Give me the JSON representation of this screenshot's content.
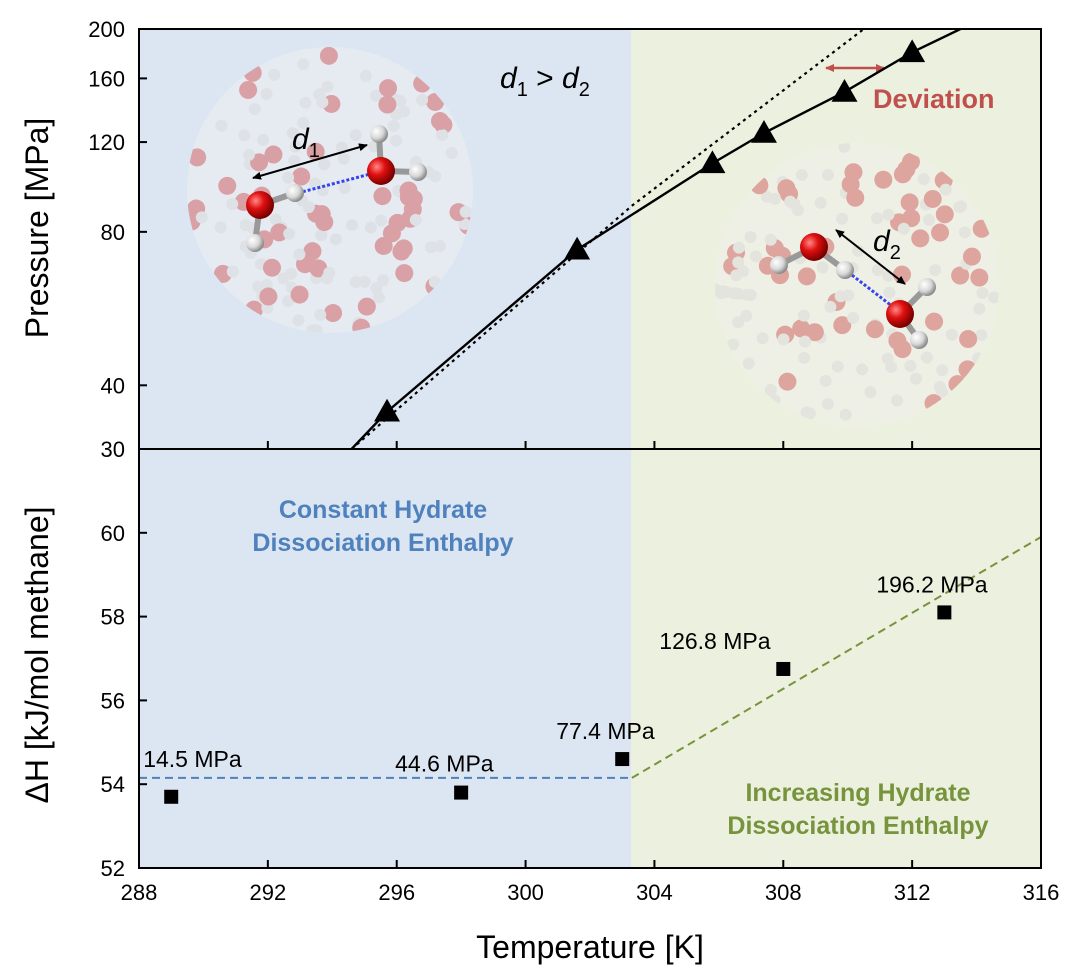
{
  "colors": {
    "left_region": "#dce6f2",
    "right_region": "#ebf1de",
    "constant_label": "#4f81bd",
    "increasing_label": "#77933c",
    "deviation": "#c0504d",
    "marker": "#000000"
  },
  "chart_data": [
    {
      "type": "line",
      "panel": "top",
      "ylabel": "Pressure [MPa]",
      "yscale": "log",
      "ylim": [
        30,
        200
      ],
      "yticks": [
        "30",
        "40",
        "80",
        "120",
        "160",
        "200"
      ],
      "xlim": [
        288,
        316
      ],
      "series": [
        {
          "style": "triangle markers, solid line",
          "x": [
            295.7,
            301.6,
            305.8,
            307.4,
            309.9,
            312.0
          ],
          "y": [
            35.5,
            73.8,
            109.0,
            125.0,
            150.5,
            180.0
          ]
        },
        {
          "style": "dotted line",
          "x": [
            294.6,
            303.3,
            310.5
          ],
          "y": [
            30,
            90,
            200
          ]
        }
      ],
      "annotations": {
        "inequality": "d1 > d2",
        "d1": "d1",
        "d2": "d2",
        "deviation": "Deviation"
      }
    },
    {
      "type": "scatter",
      "panel": "bottom",
      "xlabel": "Temperature [K]",
      "ylabel": "ΔH [kJ/mol methane]",
      "xlim": [
        288,
        316
      ],
      "ylim": [
        52,
        62
      ],
      "xticks": [
        "288",
        "292",
        "296",
        "300",
        "304",
        "308",
        "312",
        "316"
      ],
      "yticks": [
        "52",
        "54",
        "56",
        "58",
        "60"
      ],
      "series": [
        {
          "style": "square markers",
          "x": [
            289,
            298,
            303,
            308,
            313
          ],
          "y": [
            53.7,
            53.8,
            54.6,
            56.75,
            58.1
          ],
          "labels": [
            "14.5 MPa",
            "44.6 MPa",
            "77.4 MPa",
            "126.8 MPa",
            "196.2 MPa"
          ]
        }
      ],
      "trend_lines": [
        {
          "color": "blue",
          "dash": true,
          "x": [
            288,
            303.3
          ],
          "y": [
            54.15,
            54.15
          ]
        },
        {
          "color": "green",
          "dash": true,
          "x": [
            303.3,
            316
          ],
          "y": [
            54.15,
            59.9
          ]
        }
      ],
      "region_labels": {
        "constant": [
          "Constant Hydrate",
          "Dissociation Enthalpy"
        ],
        "increasing": [
          "Increasing Hydrate",
          "Dissociation Enthalpy"
        ]
      }
    }
  ]
}
